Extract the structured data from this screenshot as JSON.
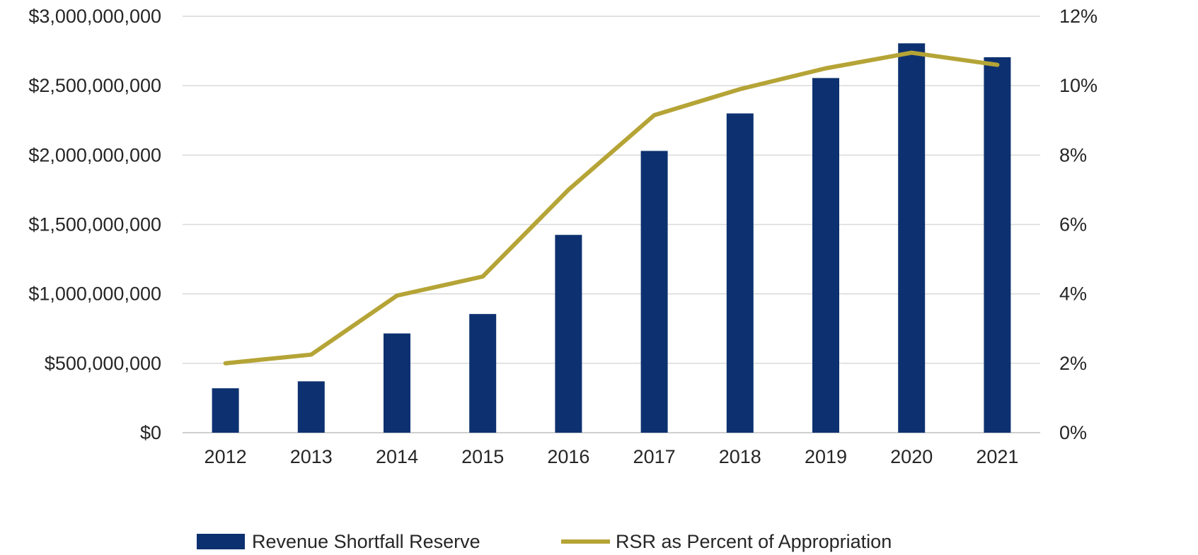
{
  "chart_data": {
    "type": "bar",
    "categories": [
      "2012",
      "2013",
      "2014",
      "2015",
      "2016",
      "2017",
      "2018",
      "2019",
      "2020",
      "2021"
    ],
    "series": [
      {
        "name": "Revenue Shortfall Reserve",
        "kind": "bar",
        "axis": "left",
        "color": "#0d3170",
        "values": [
          320000000,
          370000000,
          715000000,
          855000000,
          1425000000,
          2030000000,
          2300000000,
          2555000000,
          2805000000,
          2705000000
        ]
      },
      {
        "name": "RSR as Percent of Appropriation",
        "kind": "line",
        "axis": "right",
        "color": "#b5a436",
        "values": [
          2.0,
          2.25,
          3.95,
          4.5,
          7.0,
          9.15,
          9.9,
          10.5,
          10.95,
          10.6
        ]
      }
    ],
    "left_axis": {
      "ylim": [
        0,
        3000000000
      ],
      "ticks": [
        0,
        500000000,
        1000000000,
        1500000000,
        2000000000,
        2500000000,
        3000000000
      ],
      "tick_labels": [
        "$0",
        "$500,000,000",
        "$1,000,000,000",
        "$1,500,000,000",
        "$2,000,000,000",
        "$2,500,000,000",
        "$3,000,000,000"
      ]
    },
    "right_axis": {
      "ylim": [
        0,
        12
      ],
      "tick_labels": [
        "0%",
        "2%",
        "4%",
        "6%",
        "8%",
        "10%",
        "12%"
      ]
    },
    "grid": true,
    "legend_position": "bottom",
    "title": "",
    "xlabel": "",
    "ylabel": ""
  }
}
